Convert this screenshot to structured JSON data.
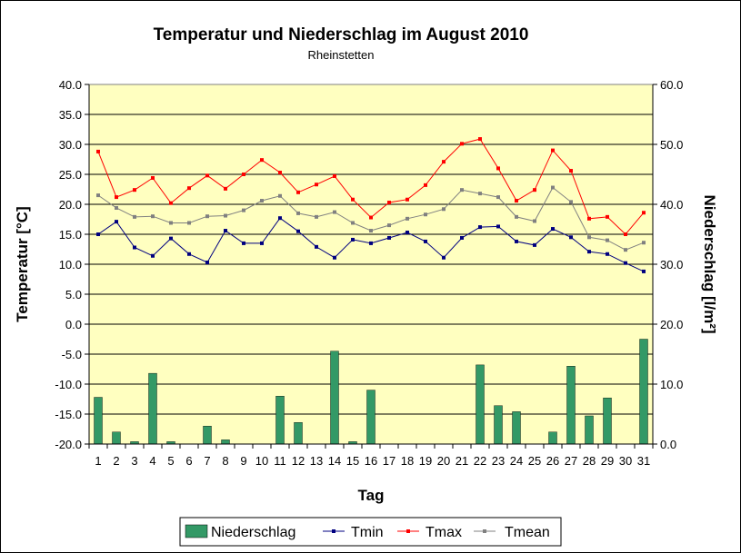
{
  "chart_data": {
    "type": "line",
    "title": "Temperatur und Niederschlag im August 2010",
    "subtitle": "Rheinstetten",
    "xlabel": "Tag",
    "ylabel": "Temperatur [°C]",
    "y2label": "Niederschlag [l/m²]",
    "ylim": [
      -20,
      40
    ],
    "y2lim": [
      0,
      60
    ],
    "y_ticks": [
      "40.0",
      "35.0",
      "30.0",
      "25.0",
      "20.0",
      "15.0",
      "10.0",
      "5.0",
      "0.0",
      "-5.0",
      "-10.0",
      "-15.0",
      "-20.0"
    ],
    "y2_ticks": [
      "60.0",
      "50.0",
      "40.0",
      "30.0",
      "20.0",
      "10.0",
      "0.0"
    ],
    "categories": [
      "1",
      "2",
      "3",
      "4",
      "5",
      "6",
      "7",
      "8",
      "9",
      "10",
      "11",
      "12",
      "13",
      "14",
      "15",
      "16",
      "17",
      "18",
      "19",
      "20",
      "21",
      "22",
      "23",
      "24",
      "25",
      "26",
      "27",
      "28",
      "29",
      "30",
      "31"
    ],
    "grid": true,
    "plot_background": "#ffffc0",
    "legend_position": "bottom",
    "series": [
      {
        "name": "Niederschlag",
        "kind": "bar",
        "axis": "right",
        "color": "#339966",
        "values": [
          7.8,
          2.0,
          0.4,
          11.8,
          0.4,
          0,
          3.0,
          0.7,
          0,
          0,
          8.0,
          3.6,
          0,
          15.5,
          0.4,
          9.0,
          0,
          0,
          0,
          0,
          0,
          13.2,
          6.4,
          5.4,
          0,
          2.0,
          13.0,
          4.7,
          7.7,
          0,
          17.5
        ]
      },
      {
        "name": "Tmin",
        "kind": "line",
        "axis": "left",
        "color": "#000080",
        "values": [
          15.0,
          17.1,
          12.8,
          11.4,
          14.3,
          11.7,
          10.3,
          15.6,
          13.5,
          13.5,
          17.7,
          15.5,
          12.9,
          11.1,
          14.1,
          13.5,
          14.4,
          15.3,
          13.8,
          11.1,
          14.4,
          16.2,
          16.3,
          13.8,
          13.2,
          15.9,
          14.5,
          12.1,
          11.7,
          10.2,
          8.8
        ]
      },
      {
        "name": "Tmax",
        "kind": "line",
        "axis": "left",
        "color": "#ff0000",
        "values": [
          28.8,
          21.2,
          22.4,
          24.4,
          20.2,
          22.7,
          24.8,
          22.6,
          25.0,
          27.4,
          25.3,
          22.0,
          23.3,
          24.7,
          20.8,
          17.8,
          20.3,
          20.8,
          23.2,
          27.1,
          30.1,
          30.9,
          26.0,
          20.6,
          22.4,
          29.0,
          25.6,
          17.6,
          17.9,
          15.0,
          18.6
        ]
      },
      {
        "name": "Tmean",
        "kind": "line",
        "axis": "left",
        "color": "#808080",
        "values": [
          21.5,
          19.4,
          17.9,
          18.0,
          16.9,
          16.9,
          18.0,
          18.1,
          19.0,
          20.6,
          21.4,
          18.5,
          17.9,
          18.7,
          16.9,
          15.6,
          16.5,
          17.6,
          18.3,
          19.2,
          22.4,
          21.8,
          21.2,
          17.9,
          17.2,
          22.8,
          20.4,
          14.5,
          14.0,
          12.4,
          13.6
        ]
      }
    ]
  }
}
